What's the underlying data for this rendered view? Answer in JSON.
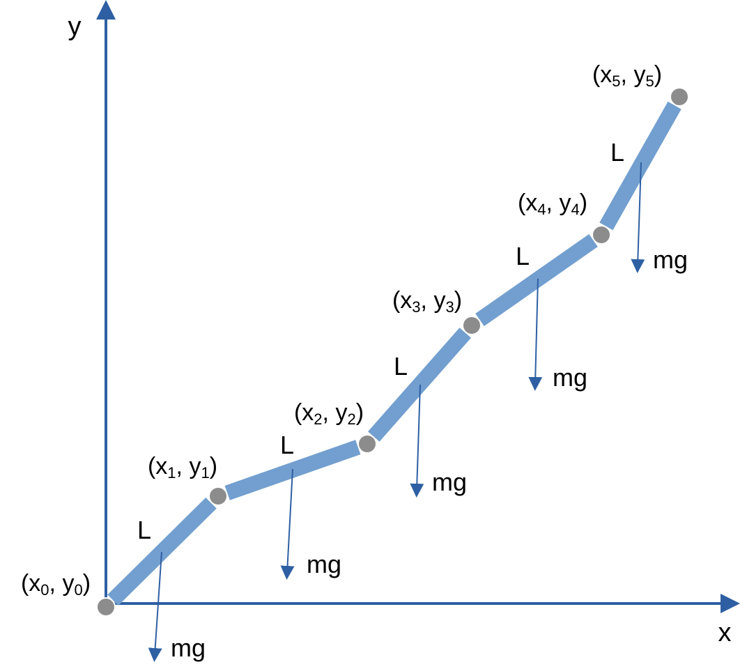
{
  "axes": {
    "x_label": "x",
    "y_label": "y"
  },
  "nodes": [
    {
      "label": [
        "(x",
        "0",
        ", y",
        "0",
        ")"
      ]
    },
    {
      "label": [
        "(x",
        "1",
        ", y",
        "1",
        ")"
      ]
    },
    {
      "label": [
        "(x",
        "2",
        ", y",
        "2",
        ")"
      ]
    },
    {
      "label": [
        "(x",
        "3",
        ", y",
        "3",
        ")"
      ]
    },
    {
      "label": [
        "(x",
        "4",
        ", y",
        "4",
        ")"
      ]
    },
    {
      "label": [
        "(x",
        "5",
        ", y",
        "5",
        ")"
      ]
    }
  ],
  "segments": [
    {
      "length_label": "L",
      "force_label": "mg"
    },
    {
      "length_label": "L",
      "force_label": "mg"
    },
    {
      "length_label": "L",
      "force_label": "mg"
    },
    {
      "length_label": "L",
      "force_label": "mg"
    },
    {
      "length_label": "L",
      "force_label": "mg"
    }
  ]
}
